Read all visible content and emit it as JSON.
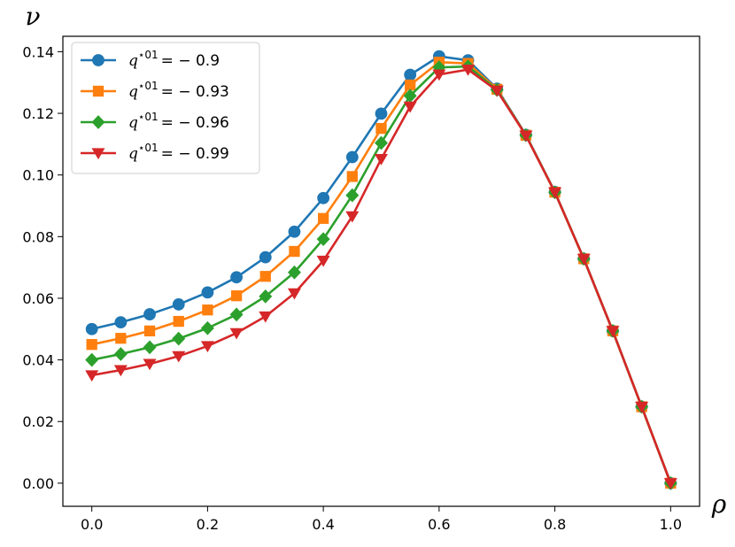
{
  "chart_data": {
    "type": "line",
    "xlabel": "ρ",
    "ylabel": "ν",
    "xlim": [
      -0.05,
      1.05
    ],
    "ylim": [
      -0.0075,
      0.145
    ],
    "xticks": [
      "0.0",
      "0.2",
      "0.4",
      "0.6",
      "0.8",
      "1.0"
    ],
    "yticks": [
      "0.00",
      "0.02",
      "0.04",
      "0.06",
      "0.08",
      "0.10",
      "0.12",
      "0.14"
    ],
    "legend_position": "top-left",
    "grid": false,
    "x": [
      0.0,
      0.05,
      0.1,
      0.15,
      0.2,
      0.25,
      0.3,
      0.35,
      0.4,
      0.45,
      0.5,
      0.55,
      0.6,
      0.65,
      0.7,
      0.75,
      0.8,
      0.85,
      0.9,
      0.95,
      1.0
    ],
    "series": [
      {
        "name": "q*01 = −0.9",
        "legend_prefix": "q",
        "legend_sup": "⋆01",
        "legend_value": "= − 0.9",
        "color": "#1f77b4",
        "marker": "circle",
        "values": [
          0.05,
          0.0522,
          0.0548,
          0.058,
          0.0619,
          0.0668,
          0.0733,
          0.0816,
          0.0925,
          0.1058,
          0.1199,
          0.1325,
          0.1385,
          0.1372,
          0.128,
          0.113,
          0.0945,
          0.0728,
          0.0494,
          0.0248,
          0.0
        ]
      },
      {
        "name": "q*01 = −0.93",
        "legend_prefix": "q",
        "legend_sup": "⋆01",
        "legend_value": "= − 0.93",
        "color": "#ff7f0e",
        "marker": "square",
        "values": [
          0.045,
          0.047,
          0.0494,
          0.0525,
          0.0562,
          0.0608,
          0.0671,
          0.0752,
          0.0859,
          0.0995,
          0.1151,
          0.1292,
          0.1366,
          0.1362,
          0.1278,
          0.1129,
          0.0944,
          0.0728,
          0.0494,
          0.0248,
          0.0
        ]
      },
      {
        "name": "q*01 = −0.96",
        "legend_prefix": "q",
        "legend_sup": "⋆01",
        "legend_value": "= − 0.96",
        "color": "#2ca02c",
        "marker": "diamond",
        "values": [
          0.04,
          0.0419,
          0.0441,
          0.0469,
          0.0503,
          0.0547,
          0.0606,
          0.0684,
          0.0792,
          0.0934,
          0.1104,
          0.1257,
          0.1349,
          0.1352,
          0.1276,
          0.1129,
          0.0944,
          0.0728,
          0.0494,
          0.0248,
          0.0
        ]
      },
      {
        "name": "q*01 = −0.99",
        "legend_prefix": "q",
        "legend_sup": "⋆01",
        "legend_value": "= − 0.99",
        "color": "#d62728",
        "marker": "triangle-down",
        "values": [
          0.035,
          0.0367,
          0.0387,
          0.0412,
          0.0445,
          0.0487,
          0.0541,
          0.0616,
          0.0722,
          0.0866,
          0.1052,
          0.1222,
          0.1326,
          0.1342,
          0.1274,
          0.1128,
          0.0944,
          0.0728,
          0.0494,
          0.0248,
          0.0
        ]
      }
    ]
  }
}
